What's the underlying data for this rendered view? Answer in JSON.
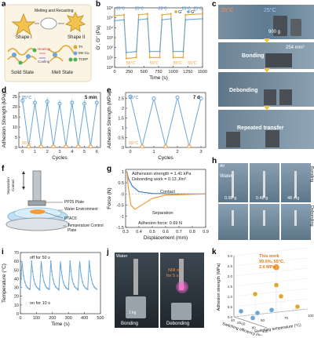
{
  "panels": {
    "a": {
      "label": "a",
      "shape1": "Shape I",
      "shape2": "Shape II",
      "process": "Melting and Recasting",
      "heating": "Heating",
      "cooling": "Cooling",
      "solid": "Solid State",
      "melt": "Melt State",
      "legend": [
        "TA",
        "Mn-Cu",
        "TCEP"
      ]
    },
    "b": {
      "label": "b",
      "legend": [
        "G'",
        "G''"
      ],
      "temps_top": [
        "25°C",
        "25°C",
        "25°C",
        "25°C",
        "25°C"
      ],
      "temps_bottom": [
        "55°C",
        "55°C",
        "55°C",
        "55°C"
      ]
    },
    "c": {
      "label": "c",
      "t_hot": "55°C",
      "t_cold": "25°C",
      "weight": "900 g",
      "bonding": "Bonding",
      "area": "254 mm²",
      "debonding": "Debonding",
      "transfer": "Repeated transfer"
    },
    "d": {
      "label": "d",
      "t_top": "25°C",
      "t_bottom": "55°C",
      "note": "5 min"
    },
    "e": {
      "label": "e",
      "t_top": "25°C",
      "t_bottom": "55°C",
      "note": "7 d"
    },
    "f": {
      "label": "f",
      "sep": "Separation",
      "contact": "Contact",
      "parts": [
        "PP25 Plate",
        "Water Environment",
        "PTAC6",
        "Temperature Control Plate"
      ]
    },
    "g": {
      "label": "g",
      "strength": "Adhension strength = 1.41 kPa",
      "work": "Debonding work = 0.13 J/m²",
      "contact": "Contact",
      "separation": "Separation",
      "force": "Adhesion force: 0.69 N"
    },
    "h": {
      "label": "h",
      "air": "Air",
      "water": "Water",
      "bonding": "Bonding",
      "debonding": "Debonding",
      "weights": [
        "0.99 g",
        "0.48 g",
        "48 mg"
      ]
    },
    "i": {
      "label": "i",
      "off": "off for 50 s",
      "on": "on for 10 s"
    },
    "j": {
      "label": "j",
      "water": "Water",
      "nir": "NIR on",
      "nir_t": "for 5 s",
      "weight": "1 kg",
      "bonding": "Bonding",
      "debonding": "Debonding"
    },
    "k": {
      "label": "k",
      "this_work": "This work",
      "point": "99.9%, 55°C,",
      "strength": "2.6 MPa"
    }
  },
  "colors": {
    "orange": "#f39c3a",
    "blue": "#6aa7d8",
    "blue_dark": "#3f7fbf",
    "gold": "#e0a72e"
  },
  "chart_data": [
    {
      "type": "line",
      "panel": "b",
      "xlabel": "Time (s)",
      "ylabel": "G', G'' (Pa)",
      "x_ticks": [
        0,
        250,
        500,
        750,
        1000,
        1250,
        1500
      ],
      "y_ticks": [
        "10⁰",
        "10¹",
        "10²",
        "10³",
        "10⁴",
        "10⁵",
        "10⁶"
      ],
      "y_scale": "log",
      "xlim": [
        0,
        1500
      ],
      "ylim": [
        0,
        6
      ],
      "series": [
        {
          "name": "G'",
          "color": "#e0a72e",
          "segments": [
            [
              0,
              5.2
            ],
            [
              160,
              5.3
            ],
            [
              200,
              0.9
            ],
            [
              370,
              1.0
            ],
            [
              410,
              5.3
            ],
            [
              560,
              5.4
            ],
            [
              600,
              1.0
            ],
            [
              770,
              1.0
            ],
            [
              810,
              5.3
            ],
            [
              960,
              5.4
            ],
            [
              1000,
              1.0
            ],
            [
              1170,
              1.0
            ],
            [
              1210,
              5.3
            ],
            [
              1500,
              5.4
            ]
          ]
        },
        {
          "name": "G''",
          "color": "#6aa7d8",
          "segments": [
            [
              0,
              4.7
            ],
            [
              160,
              4.8
            ],
            [
              200,
              1.5
            ],
            [
              370,
              1.6
            ],
            [
              410,
              4.8
            ],
            [
              560,
              4.9
            ],
            [
              600,
              1.6
            ],
            [
              770,
              1.6
            ],
            [
              810,
              4.8
            ],
            [
              960,
              4.9
            ],
            [
              1000,
              1.6
            ],
            [
              1170,
              1.6
            ],
            [
              1210,
              4.8
            ],
            [
              1500,
              4.9
            ]
          ]
        }
      ]
    },
    {
      "type": "line",
      "panel": "d",
      "xlabel": "Cycles",
      "ylabel": "Adhesion Strength (kPa)",
      "x_ticks": [
        0,
        1,
        2,
        3,
        4,
        5,
        6
      ],
      "y_ticks": [
        0,
        5,
        10,
        15,
        20,
        25
      ],
      "xlim": [
        -0.3,
        6.3
      ],
      "ylim": [
        0,
        27
      ],
      "series": [
        {
          "name": "",
          "color": "#6aa7d8",
          "x": [
            0,
            0.5,
            1,
            1.5,
            2,
            2.5,
            3,
            3.5,
            4,
            4.5,
            5,
            5.5,
            6
          ],
          "y": [
            23,
            0.5,
            22,
            0.5,
            22.5,
            0.5,
            21.5,
            0.5,
            22,
            0.5,
            21.5,
            0.5,
            22
          ]
        }
      ]
    },
    {
      "type": "line",
      "panel": "e",
      "xlabel": "Cycles",
      "ylabel": "Adhesion Strength (MPa)",
      "x_ticks": [
        0,
        1,
        2,
        3
      ],
      "y_ticks": [
        0.0,
        0.5,
        1.0,
        1.5,
        2.0,
        2.5
      ],
      "xlim": [
        -0.2,
        3.2
      ],
      "ylim": [
        0,
        2.8
      ],
      "series": [
        {
          "name": "",
          "color": "#6aa7d8",
          "x": [
            0,
            0.5,
            1,
            1.5,
            2,
            2.5,
            3
          ],
          "y": [
            2.6,
            0.05,
            2.5,
            0.05,
            2.55,
            0.05,
            2.5
          ]
        }
      ]
    },
    {
      "type": "line",
      "panel": "g",
      "xlabel": "Displacement (mm)",
      "ylabel": "Force (N)",
      "x_ticks": [
        0.3,
        0.4,
        0.5,
        0.6,
        0.7,
        0.8,
        0.9
      ],
      "y_ticks": [
        -1.5,
        -1.0,
        -0.5,
        0.0,
        0.5,
        1.0
      ],
      "xlim": [
        0.3,
        0.9
      ],
      "ylim": [
        -1.5,
        1.1
      ],
      "series": [
        {
          "name": "Contact",
          "color": "#3f7fbf",
          "x": [
            0.9,
            0.7,
            0.5,
            0.4,
            0.35,
            0.32,
            0.31
          ],
          "y": [
            0,
            0,
            0.02,
            0.1,
            0.35,
            0.7,
            1.0
          ]
        },
        {
          "name": "Separation",
          "color": "#f39c3a",
          "x": [
            0.31,
            0.32,
            0.34,
            0.37,
            0.42,
            0.5,
            0.6,
            0.9
          ],
          "y": [
            1.0,
            0.3,
            -0.5,
            -0.69,
            -0.5,
            -0.2,
            -0.05,
            0
          ]
        }
      ]
    },
    {
      "type": "line",
      "panel": "i",
      "xlabel": "Time (s)",
      "ylabel": "Temperature (°C)",
      "x_ticks": [
        0,
        100,
        200,
        300,
        400,
        500
      ],
      "y_ticks": [
        0,
        10,
        20,
        30,
        40,
        50,
        60,
        70
      ],
      "xlim": [
        0,
        500
      ],
      "ylim": [
        0,
        70
      ],
      "series": [
        {
          "name": "",
          "color": "#6aa7d8",
          "peaks_x": [
            10,
            70,
            130,
            190,
            250,
            310,
            370,
            430
          ],
          "peak_y": 60,
          "base_y": 27
        }
      ]
    },
    {
      "type": "scatter",
      "panel": "k",
      "xlabel": "Switching temperature (°C)",
      "ylabel": "Adhesion strength (MPa)",
      "zlabel": "Switching efficiency (%)",
      "y_ticks": [
        0.0,
        0.5,
        1.0,
        1.5,
        2.0,
        2.5,
        3.0
      ],
      "x_ticks": [
        25,
        50,
        75,
        100
      ],
      "z_ticks": [
        40,
        60,
        80,
        100
      ],
      "points": [
        {
          "label": "This work",
          "x": 55,
          "y": 2.6,
          "z": 99.9,
          "color": "#f39c3a"
        },
        {
          "label": "",
          "x": 60,
          "y": 1.6,
          "z": 80,
          "color": "#e0a72e"
        },
        {
          "label": "",
          "x": 40,
          "y": 1.2,
          "z": 70,
          "color": "#e0a72e"
        },
        {
          "label": "",
          "x": 70,
          "y": 0.9,
          "z": 60,
          "color": "#e0a72e"
        },
        {
          "label": "",
          "x": 80,
          "y": 0.5,
          "z": 90,
          "color": "#e0a72e"
        },
        {
          "label": "",
          "x": 30,
          "y": 0.3,
          "z": 50,
          "color": "#6aa7d8"
        },
        {
          "label": "",
          "x": 45,
          "y": 0.2,
          "z": 60,
          "color": "#6aa7d8"
        },
        {
          "label": "",
          "x": 65,
          "y": 0.15,
          "z": 40,
          "color": "#6aa7d8"
        },
        {
          "label": "",
          "x": 35,
          "y": 0.1,
          "z": 80,
          "color": "#6aa7d8"
        }
      ]
    }
  ]
}
